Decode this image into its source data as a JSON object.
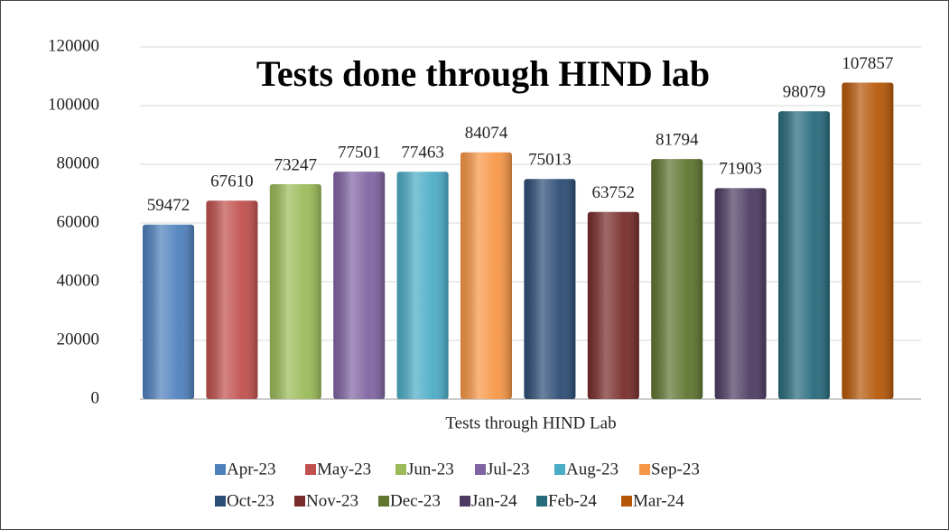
{
  "chart_data": {
    "type": "bar",
    "title": "Tests done through HIND lab",
    "x_label": "Tests through HIND Lab",
    "categories": [
      "Tests through HIND Lab"
    ],
    "series": [
      {
        "name": "Apr-23",
        "color": "#4f81bd",
        "values": [
          59472
        ]
      },
      {
        "name": "May-23",
        "color": "#c0504d",
        "values": [
          67610
        ]
      },
      {
        "name": "Jun-23",
        "color": "#9bbb59",
        "values": [
          73247
        ]
      },
      {
        "name": "Jul-23",
        "color": "#8064a2",
        "values": [
          77501
        ]
      },
      {
        "name": "Aug-23",
        "color": "#4bacc6",
        "values": [
          77463
        ]
      },
      {
        "name": "Sep-23",
        "color": "#f79646",
        "values": [
          84074
        ]
      },
      {
        "name": "Oct-23",
        "color": "#2c4d75",
        "values": [
          75013
        ]
      },
      {
        "name": "Nov-23",
        "color": "#772c2a",
        "values": [
          63752
        ]
      },
      {
        "name": "Dec-23",
        "color": "#5f7530",
        "values": [
          81794
        ]
      },
      {
        "name": "Jan-24",
        "color": "#4d3b62",
        "values": [
          71903
        ]
      },
      {
        "name": "Feb-24",
        "color": "#276a7c",
        "values": [
          98079
        ]
      },
      {
        "name": "Mar-24",
        "color": "#b65708",
        "values": [
          107857
        ]
      }
    ],
    "ylim": [
      0,
      120000
    ],
    "yticks": [
      0,
      20000,
      40000,
      60000,
      80000,
      100000,
      120000
    ],
    "grid": true,
    "legend": "bottom"
  }
}
